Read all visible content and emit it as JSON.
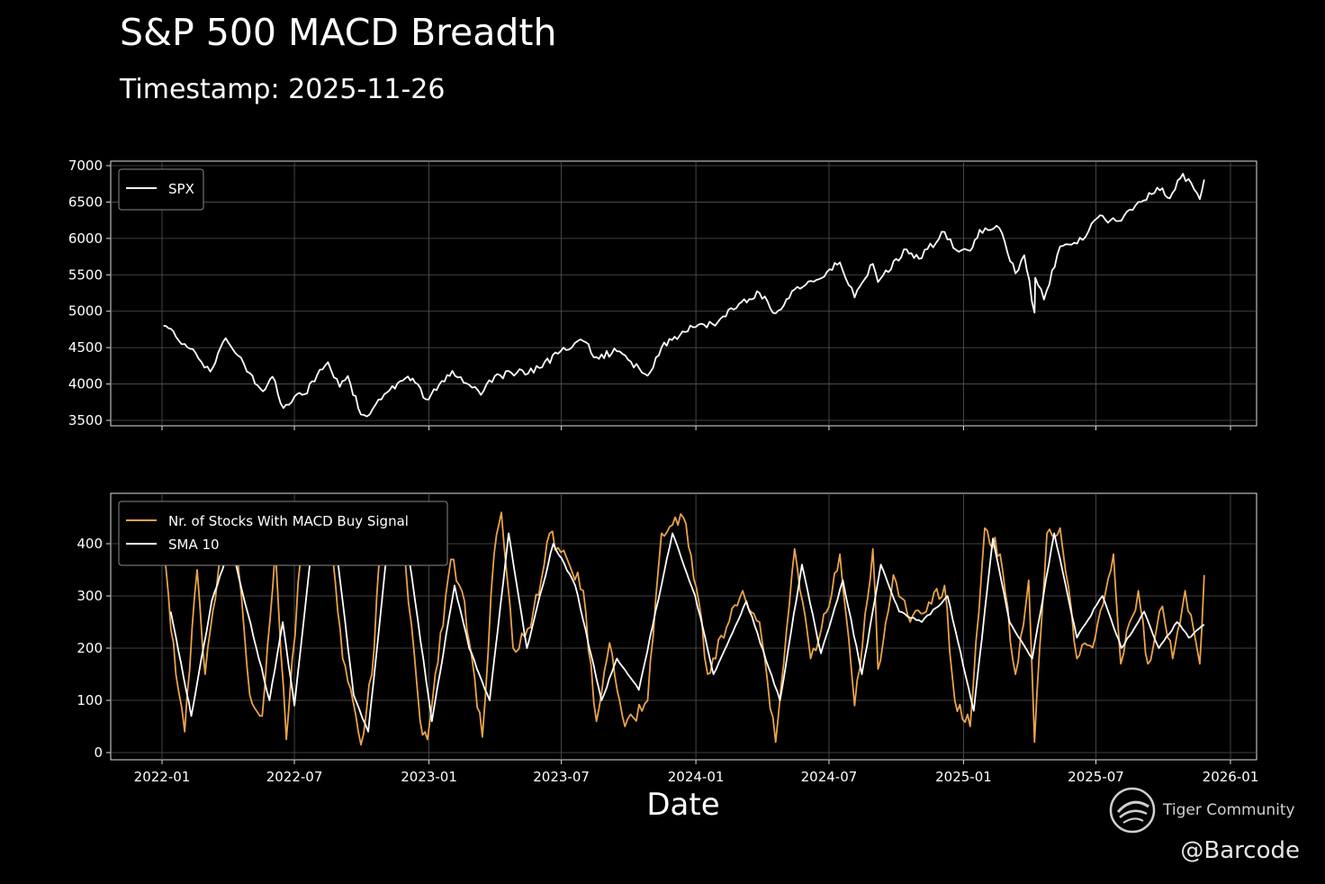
{
  "header": {
    "title": "S&P 500 MACD Breadth",
    "subtitle": "Timestamp: 2025-11-26"
  },
  "watermark": {
    "brand": "Tiger Community",
    "handle": "@Barcode"
  },
  "colors": {
    "background": "#000000",
    "spx": "#ffffff",
    "breadth": "#e8a34a",
    "sma": "#ffffff",
    "grid": "#555555"
  },
  "chart_data": [
    {
      "type": "line",
      "panel": "top",
      "title": "",
      "xlabel": "",
      "ylabel": "",
      "x_tick_labels": [
        "2022-01",
        "2022-07",
        "2023-01",
        "2023-07",
        "2024-01",
        "2024-07",
        "2025-01",
        "2025-07",
        "2026-01"
      ],
      "y_ticks": [
        3500,
        4000,
        4500,
        5000,
        5500,
        6000,
        6500,
        7000
      ],
      "ylim": [
        3450,
        7050
      ],
      "grid": true,
      "legend_position": "top-left",
      "series": [
        {
          "name": "SPX",
          "color": "#ffffff",
          "points": [
            [
              "2022-01-03",
              4800
            ],
            [
              "2022-01-20",
              4650
            ],
            [
              "2022-02-01",
              4550
            ],
            [
              "2022-02-20",
              4350
            ],
            [
              "2022-03-08",
              4170
            ],
            [
              "2022-03-29",
              4630
            ],
            [
              "2022-04-15",
              4390
            ],
            [
              "2022-05-01",
              4150
            ],
            [
              "2022-05-19",
              3900
            ],
            [
              "2022-06-01",
              4100
            ],
            [
              "2022-06-16",
              3670
            ],
            [
              "2022-07-01",
              3825
            ],
            [
              "2022-07-15",
              3860
            ],
            [
              "2022-08-01",
              4120
            ],
            [
              "2022-08-16",
              4300
            ],
            [
              "2022-09-01",
              3960
            ],
            [
              "2022-09-12",
              4110
            ],
            [
              "2022-09-30",
              3580
            ],
            [
              "2022-10-12",
              3580
            ],
            [
              "2022-11-01",
              3860
            ],
            [
              "2022-11-30",
              4080
            ],
            [
              "2022-12-13",
              4020
            ],
            [
              "2022-12-28",
              3790
            ],
            [
              "2023-01-15",
              3990
            ],
            [
              "2023-02-02",
              4180
            ],
            [
              "2023-03-01",
              3950
            ],
            [
              "2023-03-13",
              3850
            ],
            [
              "2023-04-01",
              4110
            ],
            [
              "2023-05-01",
              4150
            ],
            [
              "2023-06-01",
              4220
            ],
            [
              "2023-06-30",
              4450
            ],
            [
              "2023-07-31",
              4590
            ],
            [
              "2023-08-18",
              4370
            ],
            [
              "2023-09-15",
              4450
            ],
            [
              "2023-10-27",
              4115
            ],
            [
              "2023-11-15",
              4500
            ],
            [
              "2023-12-28",
              4780
            ],
            [
              "2024-01-31",
              4850
            ],
            [
              "2024-02-29",
              5100
            ],
            [
              "2024-03-28",
              5250
            ],
            [
              "2024-04-19",
              4970
            ],
            [
              "2024-05-15",
              5300
            ],
            [
              "2024-06-14",
              5430
            ],
            [
              "2024-07-16",
              5670
            ],
            [
              "2024-08-05",
              5190
            ],
            [
              "2024-08-30",
              5650
            ],
            [
              "2024-09-06",
              5400
            ],
            [
              "2024-10-15",
              5850
            ],
            [
              "2024-11-01",
              5720
            ],
            [
              "2024-12-06",
              6090
            ],
            [
              "2024-12-18",
              5870
            ],
            [
              "2025-01-10",
              5830
            ],
            [
              "2025-01-23",
              6120
            ],
            [
              "2025-02-19",
              6140
            ],
            [
              "2025-03-13",
              5520
            ],
            [
              "2025-03-25",
              5770
            ],
            [
              "2025-04-08",
              4980
            ],
            [
              "2025-04-09",
              5460
            ],
            [
              "2025-04-21",
              5160
            ],
            [
              "2025-05-13",
              5890
            ],
            [
              "2025-06-13",
              5980
            ],
            [
              "2025-07-03",
              6280
            ],
            [
              "2025-08-01",
              6240
            ],
            [
              "2025-08-28",
              6500
            ],
            [
              "2025-09-30",
              6690
            ],
            [
              "2025-10-10",
              6550
            ],
            [
              "2025-10-28",
              6890
            ],
            [
              "2025-11-20",
              6540
            ],
            [
              "2025-11-26",
              6810
            ]
          ]
        }
      ]
    },
    {
      "type": "line",
      "panel": "bottom",
      "title": "",
      "xlabel": "Date",
      "ylabel": "",
      "x_tick_labels": [
        "2022-01",
        "2022-07",
        "2023-01",
        "2023-07",
        "2024-01",
        "2024-07",
        "2025-01",
        "2025-07",
        "2026-01"
      ],
      "y_ticks": [
        0,
        100,
        200,
        300,
        400
      ],
      "ylim": [
        -10,
        495
      ],
      "grid": true,
      "legend_position": "top-left",
      "series": [
        {
          "name": "Nr. of Stocks With MACD Buy Signal",
          "color": "#e8a34a",
          "points": [
            [
              "2022-01-03",
              400
            ],
            [
              "2022-01-20",
              150
            ],
            [
              "2022-02-01",
              40
            ],
            [
              "2022-02-18",
              350
            ],
            [
              "2022-03-01",
              150
            ],
            [
              "2022-03-22",
              380
            ],
            [
              "2022-04-12",
              420
            ],
            [
              "2022-05-01",
              110
            ],
            [
              "2022-05-18",
              70
            ],
            [
              "2022-06-05",
              390
            ],
            [
              "2022-06-20",
              25
            ],
            [
              "2022-07-10",
              380
            ],
            [
              "2022-08-01",
              420
            ],
            [
              "2022-08-19",
              440
            ],
            [
              "2022-09-05",
              180
            ],
            [
              "2022-09-30",
              15
            ],
            [
              "2022-10-15",
              150
            ],
            [
              "2022-10-28",
              420
            ],
            [
              "2022-11-30",
              360
            ],
            [
              "2022-12-20",
              60
            ],
            [
              "2022-12-30",
              25
            ],
            [
              "2023-01-31",
              370
            ],
            [
              "2023-02-15",
              310
            ],
            [
              "2023-03-15",
              30
            ],
            [
              "2023-03-31",
              380
            ],
            [
              "2023-04-10",
              460
            ],
            [
              "2023-04-26",
              200
            ],
            [
              "2023-05-20",
              240
            ],
            [
              "2023-06-15",
              420
            ],
            [
              "2023-07-12",
              360
            ],
            [
              "2023-07-31",
              310
            ],
            [
              "2023-08-18",
              60
            ],
            [
              "2023-09-05",
              210
            ],
            [
              "2023-09-26",
              50
            ],
            [
              "2023-10-27",
              100
            ],
            [
              "2023-11-15",
              420
            ],
            [
              "2023-12-15",
              450
            ],
            [
              "2024-01-05",
              290
            ],
            [
              "2024-01-17",
              150
            ],
            [
              "2024-02-12",
              240
            ],
            [
              "2024-03-05",
              310
            ],
            [
              "2024-03-28",
              250
            ],
            [
              "2024-04-19",
              20
            ],
            [
              "2024-05-15",
              390
            ],
            [
              "2024-06-06",
              180
            ],
            [
              "2024-07-01",
              280
            ],
            [
              "2024-07-16",
              380
            ],
            [
              "2024-08-05",
              90
            ],
            [
              "2024-08-30",
              390
            ],
            [
              "2024-09-06",
              160
            ],
            [
              "2024-09-27",
              340
            ],
            [
              "2024-10-20",
              250
            ],
            [
              "2024-11-11",
              270
            ],
            [
              "2024-12-06",
              320
            ],
            [
              "2024-12-20",
              100
            ],
            [
              "2025-01-10",
              50
            ],
            [
              "2025-01-30",
              430
            ],
            [
              "2025-02-20",
              380
            ],
            [
              "2025-03-13",
              150
            ],
            [
              "2025-03-31",
              330
            ],
            [
              "2025-04-08",
              20
            ],
            [
              "2025-04-25",
              420
            ],
            [
              "2025-05-13",
              430
            ],
            [
              "2025-06-05",
              180
            ],
            [
              "2025-06-30",
              220
            ],
            [
              "2025-07-25",
              380
            ],
            [
              "2025-08-04",
              170
            ],
            [
              "2025-08-28",
              310
            ],
            [
              "2025-09-10",
              170
            ],
            [
              "2025-09-30",
              280
            ],
            [
              "2025-10-14",
              180
            ],
            [
              "2025-10-31",
              310
            ],
            [
              "2025-11-20",
              170
            ],
            [
              "2025-11-26",
              340
            ]
          ]
        },
        {
          "name": "SMA 10",
          "color": "#ffffff",
          "points": [
            [
              "2022-01-13",
              270
            ],
            [
              "2022-02-10",
              70
            ],
            [
              "2022-03-10",
              290
            ],
            [
              "2022-04-05",
              400
            ],
            [
              "2022-05-10",
              200
            ],
            [
              "2022-05-28",
              100
            ],
            [
              "2022-06-15",
              250
            ],
            [
              "2022-07-01",
              90
            ],
            [
              "2022-07-25",
              400
            ],
            [
              "2022-08-25",
              420
            ],
            [
              "2022-09-20",
              110
            ],
            [
              "2022-10-10",
              40
            ],
            [
              "2022-11-05",
              390
            ],
            [
              "2022-12-05",
              370
            ],
            [
              "2023-01-05",
              60
            ],
            [
              "2023-02-05",
              320
            ],
            [
              "2023-02-25",
              200
            ],
            [
              "2023-03-25",
              100
            ],
            [
              "2023-04-20",
              420
            ],
            [
              "2023-05-15",
              200
            ],
            [
              "2023-06-20",
              400
            ],
            [
              "2023-07-20",
              320
            ],
            [
              "2023-08-25",
              100
            ],
            [
              "2023-09-15",
              180
            ],
            [
              "2023-10-15",
              120
            ],
            [
              "2023-11-30",
              420
            ],
            [
              "2023-12-31",
              300
            ],
            [
              "2024-01-25",
              150
            ],
            [
              "2024-03-10",
              290
            ],
            [
              "2024-04-25",
              100
            ],
            [
              "2024-05-25",
              360
            ],
            [
              "2024-06-20",
              190
            ],
            [
              "2024-07-20",
              330
            ],
            [
              "2024-08-15",
              150
            ],
            [
              "2024-09-10",
              360
            ],
            [
              "2024-10-05",
              270
            ],
            [
              "2024-11-05",
              250
            ],
            [
              "2024-12-10",
              300
            ],
            [
              "2025-01-15",
              80
            ],
            [
              "2025-02-10",
              410
            ],
            [
              "2025-03-05",
              250
            ],
            [
              "2025-04-05",
              180
            ],
            [
              "2025-05-05",
              420
            ],
            [
              "2025-06-05",
              220
            ],
            [
              "2025-07-10",
              300
            ],
            [
              "2025-08-05",
              200
            ],
            [
              "2025-09-05",
              270
            ],
            [
              "2025-09-25",
              200
            ],
            [
              "2025-10-20",
              250
            ],
            [
              "2025-11-05",
              220
            ],
            [
              "2025-11-26",
              245
            ]
          ]
        }
      ]
    }
  ]
}
